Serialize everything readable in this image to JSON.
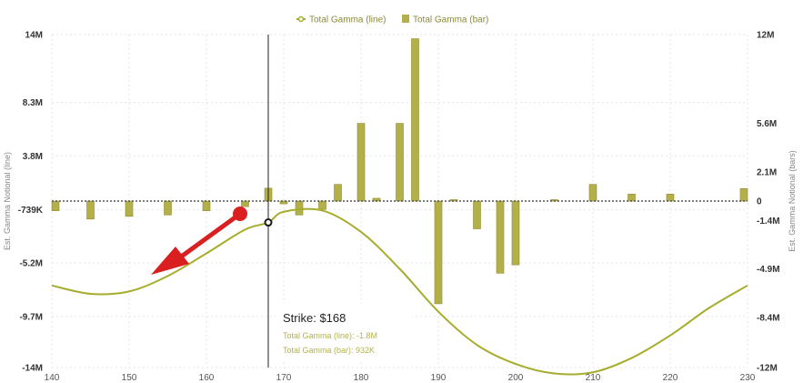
{
  "legend": {
    "line_label": "Total Gamma (line)",
    "bar_label": "Total Gamma (bar)"
  },
  "tooltip": {
    "title": "Strike: $168",
    "line_text": "Total Gamma (line): -1.8M",
    "bar_text": "Total Gamma (bar): 932K"
  },
  "colors": {
    "line": "#a6ad2c",
    "bar": "#b3b04a",
    "bar_stroke": "#8f8c30",
    "arrow": "#d91f1f",
    "zero_line": "#555555",
    "crosshair": "#222222"
  },
  "chart_data": {
    "type": "bar",
    "xlim": [
      140,
      230
    ],
    "x_ticks": [
      140,
      150,
      160,
      170,
      180,
      190,
      200,
      210,
      220,
      230
    ],
    "left_axis": {
      "ylabel": "Est. Gamma Notional (line)",
      "ylim": [
        -14,
        14
      ],
      "ticks": [
        {
          "v": 14,
          "label": "14M"
        },
        {
          "v": 8.3,
          "label": "8.3M"
        },
        {
          "v": 3.8,
          "label": "3.8M"
        },
        {
          "v": -0.739,
          "label": "-739K"
        },
        {
          "v": -5.2,
          "label": "-5.2M"
        },
        {
          "v": -9.7,
          "label": "-9.7M"
        },
        {
          "v": -14,
          "label": "-14M"
        }
      ]
    },
    "right_axis": {
      "ylabel": "Est. Gamma Notional (bars)",
      "ylim": [
        -12,
        12
      ],
      "ticks": [
        {
          "v": 12,
          "label": "12M"
        },
        {
          "v": 5.6,
          "label": "5.6M"
        },
        {
          "v": 2.1,
          "label": "2.1M"
        },
        {
          "v": 0,
          "label": "0"
        },
        {
          "v": -1.4,
          "label": "-1.4M"
        },
        {
          "v": -4.9,
          "label": "-4.9M"
        },
        {
          "v": -8.4,
          "label": "-8.4M"
        },
        {
          "v": -12,
          "label": "-12M"
        }
      ]
    },
    "bars": {
      "name": "Total Gamma (bar)",
      "x": [
        140,
        145,
        150,
        155,
        160,
        165,
        168,
        170,
        172,
        175,
        177,
        180,
        182,
        185,
        187,
        190,
        192,
        195,
        198,
        200,
        205,
        210,
        215,
        220,
        230
      ],
      "values": [
        -0.7,
        -1.3,
        -1.1,
        -1.0,
        -0.7,
        -0.4,
        0.93,
        -0.2,
        -1.0,
        -0.6,
        1.2,
        5.6,
        0.2,
        5.6,
        11.7,
        -7.4,
        0.1,
        -2.0,
        -5.2,
        -4.6,
        0.1,
        1.2,
        0.5,
        0.5,
        0.9
      ]
    },
    "line": {
      "name": "Total Gamma (line)",
      "x": [
        140,
        145,
        150,
        155,
        160,
        165,
        168,
        170,
        175,
        180,
        185,
        190,
        195,
        200,
        205,
        210,
        215,
        220,
        225,
        230
      ],
      "values": [
        -7.1,
        -7.8,
        -7.6,
        -6.3,
        -4.4,
        -2.4,
        -1.8,
        -0.9,
        -0.8,
        -2.6,
        -5.7,
        -9.3,
        -12.1,
        -13.7,
        -14.5,
        -14.4,
        -13.2,
        -11.3,
        -9.0,
        -7.1
      ]
    },
    "highlight_x": 168,
    "annotation": "red arrow pointing down-left"
  }
}
